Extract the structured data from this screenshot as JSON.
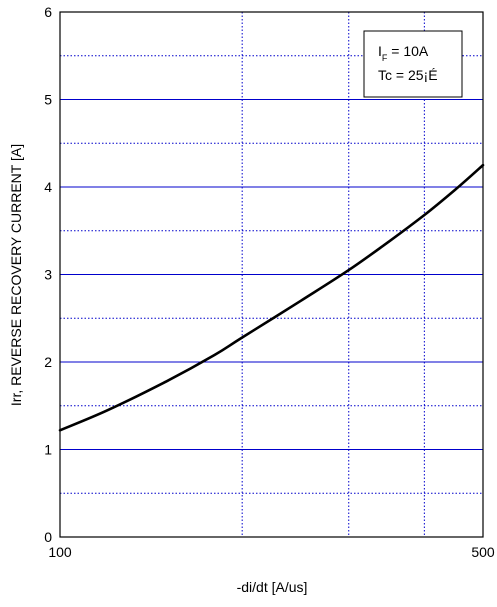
{
  "chart_data": {
    "type": "line",
    "xlabel": "-di/dt [A/us]",
    "ylabel": "Irr, REVERSE RECOVERY CURRENT [A]",
    "x_scale": "log",
    "xlim": [
      100,
      500
    ],
    "ylim": [
      0,
      6
    ],
    "x_ticks": [
      100,
      500
    ],
    "x_tick_labels": [
      "100",
      "500"
    ],
    "x_grid_minor": [
      200,
      300,
      400
    ],
    "y_ticks": [
      0,
      1,
      2,
      3,
      4,
      5,
      6
    ],
    "y_tick_labels": [
      "0",
      "1",
      "2",
      "3",
      "4",
      "5",
      "6"
    ],
    "y_grid_minor": [
      0.5,
      1.5,
      2.5,
      3.5,
      4.5,
      5.5
    ],
    "grid": true,
    "legend": {
      "placement": "top-right",
      "line1_main": "I",
      "line1_sub": "F",
      "line1_rest": " = 10A",
      "line2": "Tc = 25¡É"
    },
    "series": [
      {
        "x": [
          100,
          120,
          150,
          180,
          200,
          250,
          300,
          350,
          400,
          450,
          500
        ],
        "y": [
          1.22,
          1.45,
          1.78,
          2.08,
          2.28,
          2.7,
          3.05,
          3.38,
          3.68,
          3.97,
          4.25
        ]
      }
    ],
    "colors": {
      "grid_major": "#0000cc",
      "grid_minor": "#0000cc",
      "line": "#000000",
      "frame": "#000000"
    }
  }
}
